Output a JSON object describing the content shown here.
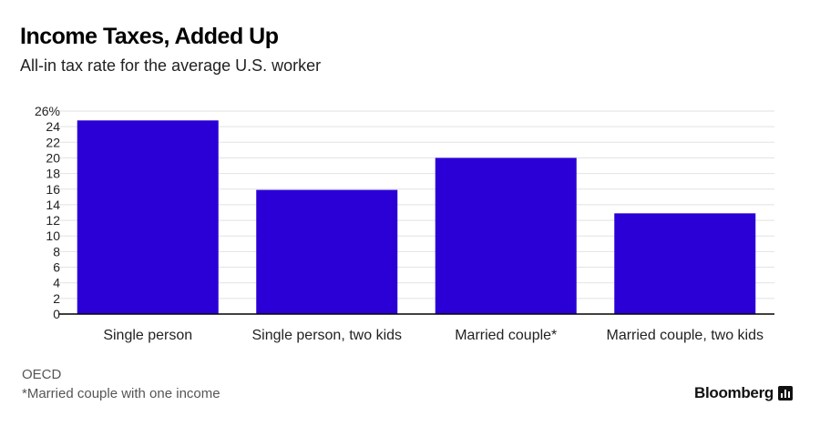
{
  "header": {
    "title": "Income Taxes, Added Up",
    "subtitle": "All-in tax rate for the average U.S. worker"
  },
  "footer": {
    "source": "OECD",
    "footnote": "*Married couple with one income",
    "brand": "Bloomberg"
  },
  "colors": {
    "bar": "#2a00d6",
    "grid": "#e2e2e2",
    "axis": "#000000",
    "text": "#222222"
  },
  "chart_data": {
    "type": "bar",
    "title": "Income Taxes, Added Up",
    "subtitle": "All-in tax rate for the average U.S. worker",
    "categories": [
      "Single person",
      "Single person, two kids",
      "Married couple*",
      "Married couple, two kids"
    ],
    "values": [
      24.8,
      15.9,
      20.0,
      12.9
    ],
    "ylim": [
      0,
      26
    ],
    "yticks": [
      0,
      2,
      4,
      6,
      8,
      10,
      12,
      14,
      16,
      18,
      20,
      22,
      24,
      26
    ],
    "ytick_labels": [
      "0",
      "2",
      "4",
      "6",
      "8",
      "10",
      "12",
      "14",
      "16",
      "18",
      "20",
      "22",
      "24",
      "26%"
    ],
    "xlabel": "",
    "ylabel": "",
    "grid": true,
    "legend": "none"
  }
}
